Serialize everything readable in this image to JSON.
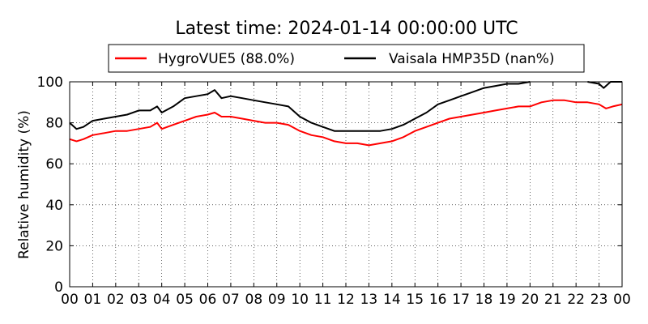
{
  "chart_data": {
    "type": "line",
    "title": "Latest time: 2024-01-14 00:00:00 UTC",
    "xlabel": "",
    "ylabel": "Relative humidity (%)",
    "xlim": [
      0,
      24
    ],
    "ylim": [
      0,
      100
    ],
    "x_ticks": [
      "00",
      "01",
      "02",
      "03",
      "04",
      "05",
      "06",
      "07",
      "08",
      "09",
      "10",
      "11",
      "12",
      "13",
      "14",
      "15",
      "16",
      "17",
      "18",
      "19",
      "20",
      "21",
      "22",
      "23",
      "00"
    ],
    "y_ticks": [
      0,
      20,
      40,
      60,
      80,
      100
    ],
    "grid": true,
    "legend": "top-center",
    "series": [
      {
        "name": "HygroVUE5 (88.0%)",
        "color": "#ff0000",
        "x": [
          0,
          0.3,
          0.6,
          1,
          1.5,
          2,
          2.5,
          3,
          3.5,
          3.8,
          4,
          4.5,
          5,
          5.5,
          6,
          6.3,
          6.6,
          7,
          7.5,
          8,
          8.5,
          9,
          9.5,
          10,
          10.5,
          11,
          11.5,
          12,
          12.5,
          13,
          13.5,
          14,
          14.5,
          15,
          15.5,
          16,
          16.5,
          17,
          17.5,
          18,
          18.5,
          19,
          19.5,
          20,
          20.5,
          21,
          21.5,
          22,
          22.5,
          23,
          23.3,
          23.6,
          24
        ],
        "values": [
          72,
          71,
          72,
          74,
          75,
          76,
          76,
          77,
          78,
          80,
          77,
          79,
          81,
          83,
          84,
          85,
          83,
          83,
          82,
          81,
          80,
          80,
          79,
          76,
          74,
          73,
          71,
          70,
          70,
          69,
          70,
          71,
          73,
          76,
          78,
          80,
          82,
          83,
          84,
          85,
          86,
          87,
          88,
          88,
          90,
          91,
          91,
          90,
          90,
          89,
          87,
          88,
          89
        ]
      },
      {
        "name": "Vaisala HMP35D (nan%)",
        "color": "#000000",
        "x": [
          0,
          0.3,
          0.6,
          1,
          1.5,
          2,
          2.5,
          3,
          3.5,
          3.8,
          4,
          4.5,
          5,
          5.5,
          6,
          6.3,
          6.6,
          7,
          7.5,
          8,
          8.5,
          9,
          9.5,
          10,
          10.5,
          11,
          11.5,
          12,
          12.5,
          13,
          13.5,
          14,
          14.5,
          15,
          15.5,
          16,
          16.5,
          17,
          17.5,
          18,
          18.5,
          19,
          19.5,
          20
        ],
        "values": [
          80,
          77,
          78,
          81,
          82,
          83,
          84,
          86,
          86,
          88,
          85,
          88,
          92,
          93,
          94,
          96,
          92,
          93,
          92,
          91,
          90,
          89,
          88,
          83,
          80,
          78,
          76,
          76,
          76,
          76,
          76,
          77,
          79,
          82,
          85,
          89,
          91,
          93,
          95,
          97,
          98,
          99,
          99,
          100
        ]
      },
      {
        "name": "Vaisala HMP35D (nan%)",
        "color": "#000000",
        "x": [
          22.5,
          23,
          23.2,
          23.5,
          24
        ],
        "values": [
          100,
          99,
          97,
          100,
          100
        ],
        "legend": false
      }
    ]
  }
}
